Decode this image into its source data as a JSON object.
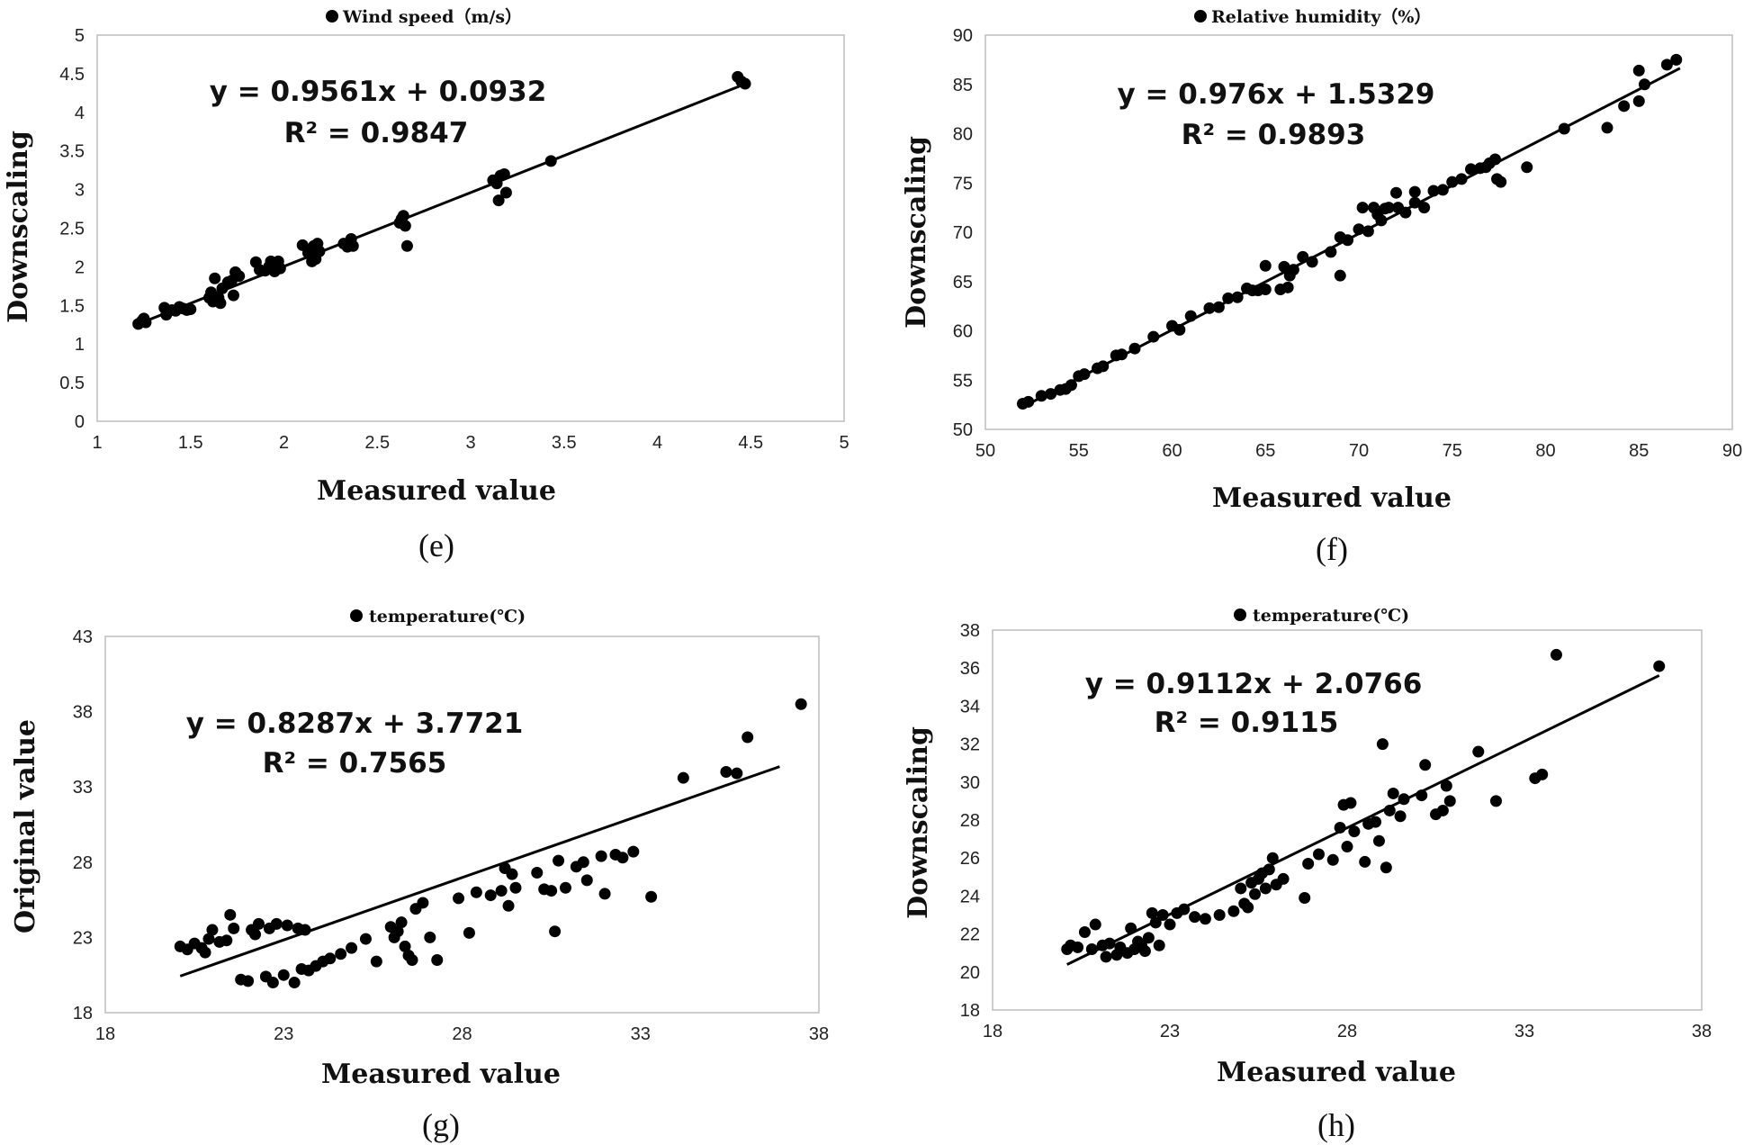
{
  "chart_data": [
    {
      "panel": "(e)",
      "type": "scatter",
      "legend": "Wind speed（m/s）",
      "xlabel": "Measured value",
      "ylabel": "Downscaling",
      "xlim": [
        1,
        5
      ],
      "ylim": [
        0,
        5
      ],
      "x_ticks": [
        "1",
        "1.5",
        "2",
        "2.5",
        "3",
        "3.5",
        "4",
        "4.5",
        "5"
      ],
      "y_ticks": [
        "0",
        "0.5",
        "1",
        "1.5",
        "2",
        "2.5",
        "3",
        "3.5",
        "4",
        "4.5",
        "5"
      ],
      "equation": "y = 0.9561x + 0.0932",
      "r_squared": "R² = 0.9847",
      "fit": {
        "slope": 0.9561,
        "intercept": 0.0932,
        "x_range": [
          1.22,
          4.48
        ]
      },
      "points": [
        [
          1.22,
          1.26
        ],
        [
          1.24,
          1.3
        ],
        [
          1.26,
          1.28
        ],
        [
          1.25,
          1.33
        ],
        [
          1.36,
          1.47
        ],
        [
          1.37,
          1.38
        ],
        [
          1.4,
          1.44
        ],
        [
          1.42,
          1.43
        ],
        [
          1.44,
          1.48
        ],
        [
          1.46,
          1.46
        ],
        [
          1.48,
          1.44
        ],
        [
          1.5,
          1.45
        ],
        [
          1.6,
          1.6
        ],
        [
          1.61,
          1.67
        ],
        [
          1.62,
          1.55
        ],
        [
          1.63,
          1.85
        ],
        [
          1.64,
          1.58
        ],
        [
          1.65,
          1.6
        ],
        [
          1.66,
          1.53
        ],
        [
          1.67,
          1.72
        ],
        [
          1.7,
          1.8
        ],
        [
          1.72,
          1.82
        ],
        [
          1.73,
          1.63
        ],
        [
          1.74,
          1.93
        ],
        [
          1.76,
          1.88
        ],
        [
          1.85,
          2.06
        ],
        [
          1.87,
          1.96
        ],
        [
          1.9,
          1.95
        ],
        [
          1.92,
          2.0
        ],
        [
          1.93,
          2.07
        ],
        [
          1.95,
          1.94
        ],
        [
          1.97,
          2.07
        ],
        [
          1.98,
          1.98
        ],
        [
          2.1,
          2.28
        ],
        [
          2.13,
          2.18
        ],
        [
          2.15,
          2.07
        ],
        [
          2.16,
          2.27
        ],
        [
          2.17,
          2.1
        ],
        [
          2.18,
          2.3
        ],
        [
          2.19,
          2.2
        ],
        [
          2.32,
          2.3
        ],
        [
          2.34,
          2.26
        ],
        [
          2.36,
          2.36
        ],
        [
          2.37,
          2.27
        ],
        [
          2.62,
          2.57
        ],
        [
          2.63,
          2.62
        ],
        [
          2.64,
          2.66
        ],
        [
          2.65,
          2.53
        ],
        [
          2.66,
          2.27
        ],
        [
          3.12,
          3.12
        ],
        [
          3.14,
          3.08
        ],
        [
          3.15,
          2.86
        ],
        [
          3.16,
          3.18
        ],
        [
          3.18,
          3.2
        ],
        [
          3.19,
          2.96
        ],
        [
          3.43,
          3.37
        ],
        [
          4.43,
          4.46
        ],
        [
          4.45,
          4.4
        ],
        [
          4.47,
          4.37
        ]
      ]
    },
    {
      "panel": "(f)",
      "type": "scatter",
      "legend": "Relative humidity（%）",
      "xlabel": "Measured value",
      "ylabel": "Downscaling",
      "xlim": [
        50,
        90
      ],
      "ylim": [
        50,
        90
      ],
      "x_ticks": [
        "50",
        "55",
        "60",
        "65",
        "70",
        "75",
        "80",
        "85",
        "90"
      ],
      "y_ticks": [
        "50",
        "55",
        "60",
        "65",
        "70",
        "75",
        "80",
        "85",
        "90"
      ],
      "equation": "y = 0.976x + 1.5329",
      "r_squared": "R² = 0.9893",
      "fit": {
        "slope": 0.976,
        "intercept": 1.5329,
        "x_range": [
          52,
          87.2
        ]
      },
      "points": [
        [
          52,
          52.6
        ],
        [
          52.3,
          52.8
        ],
        [
          53,
          53.4
        ],
        [
          53.5,
          53.6
        ],
        [
          54,
          54
        ],
        [
          54.3,
          54.1
        ],
        [
          54.6,
          54.5
        ],
        [
          55,
          55.4
        ],
        [
          55.3,
          55.6
        ],
        [
          56,
          56.2
        ],
        [
          56.3,
          56.4
        ],
        [
          57,
          57.5
        ],
        [
          57.3,
          57.6
        ],
        [
          58,
          58.2
        ],
        [
          59,
          59.4
        ],
        [
          60,
          60.5
        ],
        [
          60.4,
          60.1
        ],
        [
          61,
          61.5
        ],
        [
          62,
          62.3
        ],
        [
          62.5,
          62.4
        ],
        [
          63,
          63.3
        ],
        [
          63.5,
          63.4
        ],
        [
          64,
          64.3
        ],
        [
          64.3,
          64.1
        ],
        [
          64.6,
          64.1
        ],
        [
          65,
          66.6
        ],
        [
          65,
          64.2
        ],
        [
          65.8,
          64.2
        ],
        [
          66,
          66.5
        ],
        [
          66.2,
          64.4
        ],
        [
          66.3,
          65.6
        ],
        [
          66.5,
          66.2
        ],
        [
          67,
          67.5
        ],
        [
          67.5,
          67
        ],
        [
          68.5,
          68
        ],
        [
          69,
          69.5
        ],
        [
          69,
          65.6
        ],
        [
          69.4,
          69.2
        ],
        [
          70,
          70.3
        ],
        [
          70.2,
          72.5
        ],
        [
          70.5,
          70.1
        ],
        [
          70.8,
          72.5
        ],
        [
          71,
          71.8
        ],
        [
          71.2,
          71.2
        ],
        [
          71.4,
          72.4
        ],
        [
          71.6,
          72.5
        ],
        [
          72,
          74
        ],
        [
          72.1,
          72.5
        ],
        [
          72.5,
          72
        ],
        [
          73,
          74.1
        ],
        [
          73,
          73
        ],
        [
          73.5,
          72.5
        ],
        [
          74,
          74.2
        ],
        [
          74.5,
          74.3
        ],
        [
          75,
          75.1
        ],
        [
          75.5,
          75.4
        ],
        [
          76,
          76.4
        ],
        [
          76.5,
          76.5
        ],
        [
          76.8,
          76.6
        ],
        [
          77,
          77
        ],
        [
          77.3,
          77.4
        ],
        [
          77.4,
          75.4
        ],
        [
          77.6,
          75.1
        ],
        [
          79,
          76.6
        ],
        [
          81,
          80.5
        ],
        [
          83.3,
          80.6
        ],
        [
          84.2,
          82.8
        ],
        [
          85,
          83.3
        ],
        [
          85,
          86.4
        ],
        [
          85.3,
          85
        ],
        [
          86.5,
          87
        ],
        [
          87,
          87.5
        ]
      ]
    },
    {
      "panel": "(g)",
      "type": "scatter",
      "legend": "temperature(℃)",
      "xlabel": "Measured value",
      "ylabel": "Original value",
      "xlim": [
        18,
        38
      ],
      "ylim": [
        18,
        43
      ],
      "x_ticks": [
        "18",
        "23",
        "28",
        "33",
        "38"
      ],
      "y_ticks": [
        "18",
        "23",
        "28",
        "33",
        "38",
        "43"
      ],
      "equation": "y = 0.8287x + 3.7721",
      "r_squared": "R² = 0.7565",
      "fit": {
        "slope": 0.8287,
        "intercept": 3.7721,
        "x_range": [
          20.1,
          36.9
        ]
      },
      "points": [
        [
          20.1,
          22.4
        ],
        [
          20.3,
          22.2
        ],
        [
          20.5,
          22.6
        ],
        [
          20.7,
          22.3
        ],
        [
          20.8,
          22
        ],
        [
          20.9,
          22.9
        ],
        [
          21,
          23.5
        ],
        [
          21.2,
          22.7
        ],
        [
          21.4,
          22.8
        ],
        [
          21.5,
          24.5
        ],
        [
          21.6,
          23.6
        ],
        [
          21.8,
          20.2
        ],
        [
          22,
          20.1
        ],
        [
          22.1,
          23.5
        ],
        [
          22.2,
          23.2
        ],
        [
          22.3,
          23.9
        ],
        [
          22.5,
          20.4
        ],
        [
          22.6,
          23.6
        ],
        [
          22.7,
          20
        ],
        [
          22.8,
          23.9
        ],
        [
          23,
          20.5
        ],
        [
          23.1,
          23.8
        ],
        [
          23.3,
          20
        ],
        [
          23.4,
          23.6
        ],
        [
          23.5,
          20.9
        ],
        [
          23.6,
          23.5
        ],
        [
          23.7,
          20.8
        ],
        [
          23.9,
          21.1
        ],
        [
          24.1,
          21.4
        ],
        [
          24.3,
          21.6
        ],
        [
          24.6,
          21.9
        ],
        [
          24.9,
          22.3
        ],
        [
          25.3,
          22.9
        ],
        [
          25.6,
          21.4
        ],
        [
          26,
          23.7
        ],
        [
          26.1,
          23
        ],
        [
          26.2,
          23.4
        ],
        [
          26.3,
          24
        ],
        [
          26.4,
          22.4
        ],
        [
          26.5,
          21.8
        ],
        [
          26.6,
          21.5
        ],
        [
          26.7,
          24.9
        ],
        [
          26.9,
          25.3
        ],
        [
          27.1,
          23
        ],
        [
          27.3,
          21.5
        ],
        [
          27.9,
          25.6
        ],
        [
          28.2,
          23.3
        ],
        [
          28.4,
          26
        ],
        [
          28.8,
          25.8
        ],
        [
          29.1,
          26.1
        ],
        [
          29.2,
          27.6
        ],
        [
          29.3,
          25.1
        ],
        [
          29.4,
          27.2
        ],
        [
          29.5,
          26.3
        ],
        [
          30.1,
          27.3
        ],
        [
          30.3,
          26.2
        ],
        [
          30.5,
          26.1
        ],
        [
          30.6,
          23.4
        ],
        [
          30.7,
          28.1
        ],
        [
          30.9,
          26.3
        ],
        [
          31.2,
          27.7
        ],
        [
          31.4,
          28
        ],
        [
          31.5,
          26.8
        ],
        [
          31.9,
          28.4
        ],
        [
          32,
          25.9
        ],
        [
          32.3,
          28.5
        ],
        [
          32.5,
          28.3
        ],
        [
          32.8,
          28.7
        ],
        [
          33.3,
          25.7
        ],
        [
          34.2,
          33.6
        ],
        [
          35.4,
          34
        ],
        [
          35.7,
          33.9
        ],
        [
          36,
          36.3
        ],
        [
          37.5,
          38.5
        ]
      ]
    },
    {
      "panel": "(h)",
      "type": "scatter",
      "legend": "temperature(℃)",
      "xlabel": "Measured value",
      "ylabel": "Downscaling",
      "xlim": [
        18,
        38
      ],
      "ylim": [
        18,
        38
      ],
      "x_ticks": [
        "18",
        "23",
        "28",
        "33",
        "38"
      ],
      "y_ticks": [
        "18",
        "20",
        "22",
        "24",
        "26",
        "28",
        "30",
        "32",
        "34",
        "36",
        "38"
      ],
      "equation": "y = 0.9112x + 2.0766",
      "r_squared": "R² = 0.9115",
      "fit": {
        "slope": 0.9112,
        "intercept": 2.0766,
        "x_range": [
          20.1,
          36.8
        ]
      },
      "points": [
        [
          20.1,
          21.2
        ],
        [
          20.2,
          21.4
        ],
        [
          20.4,
          21.3
        ],
        [
          20.6,
          22.1
        ],
        [
          20.8,
          21.2
        ],
        [
          20.9,
          22.5
        ],
        [
          21.1,
          21.4
        ],
        [
          21.2,
          20.8
        ],
        [
          21.3,
          21.5
        ],
        [
          21.5,
          20.9
        ],
        [
          21.6,
          21.3
        ],
        [
          21.8,
          21
        ],
        [
          21.9,
          22.3
        ],
        [
          22,
          21.2
        ],
        [
          22.1,
          21.6
        ],
        [
          22.2,
          21.4
        ],
        [
          22.3,
          21.1
        ],
        [
          22.4,
          21.8
        ],
        [
          22.5,
          23.1
        ],
        [
          22.6,
          22.6
        ],
        [
          22.7,
          21.4
        ],
        [
          22.8,
          23
        ],
        [
          23,
          22.5
        ],
        [
          23.2,
          23.1
        ],
        [
          23.4,
          23.3
        ],
        [
          23.7,
          22.9
        ],
        [
          24,
          22.8
        ],
        [
          24.4,
          23
        ],
        [
          24.8,
          23.2
        ],
        [
          25,
          24.4
        ],
        [
          25.1,
          23.6
        ],
        [
          25.2,
          23.4
        ],
        [
          25.3,
          24.7
        ],
        [
          25.4,
          24.1
        ],
        [
          25.5,
          24.9
        ],
        [
          25.6,
          25.2
        ],
        [
          25.7,
          24.4
        ],
        [
          25.8,
          25.4
        ],
        [
          25.9,
          26
        ],
        [
          26,
          24.6
        ],
        [
          26.2,
          24.9
        ],
        [
          26.8,
          23.9
        ],
        [
          26.9,
          25.7
        ],
        [
          27.2,
          26.2
        ],
        [
          27.6,
          25.9
        ],
        [
          27.8,
          27.6
        ],
        [
          27.9,
          28.8
        ],
        [
          28,
          26.6
        ],
        [
          28.1,
          28.9
        ],
        [
          28.2,
          27.4
        ],
        [
          28.5,
          25.8
        ],
        [
          28.6,
          27.8
        ],
        [
          28.8,
          27.9
        ],
        [
          28.9,
          26.9
        ],
        [
          29,
          32
        ],
        [
          29.1,
          25.5
        ],
        [
          29.2,
          28.5
        ],
        [
          29.3,
          29.4
        ],
        [
          29.5,
          28.2
        ],
        [
          29.6,
          29.1
        ],
        [
          30.1,
          29.3
        ],
        [
          30.2,
          30.9
        ],
        [
          30.5,
          28.3
        ],
        [
          30.7,
          28.5
        ],
        [
          30.8,
          29.8
        ],
        [
          30.9,
          29
        ],
        [
          31.7,
          31.6
        ],
        [
          32.2,
          29
        ],
        [
          33.3,
          30.2
        ],
        [
          33.5,
          30.4
        ],
        [
          33.9,
          36.7
        ],
        [
          36.8,
          36.1
        ]
      ]
    }
  ]
}
